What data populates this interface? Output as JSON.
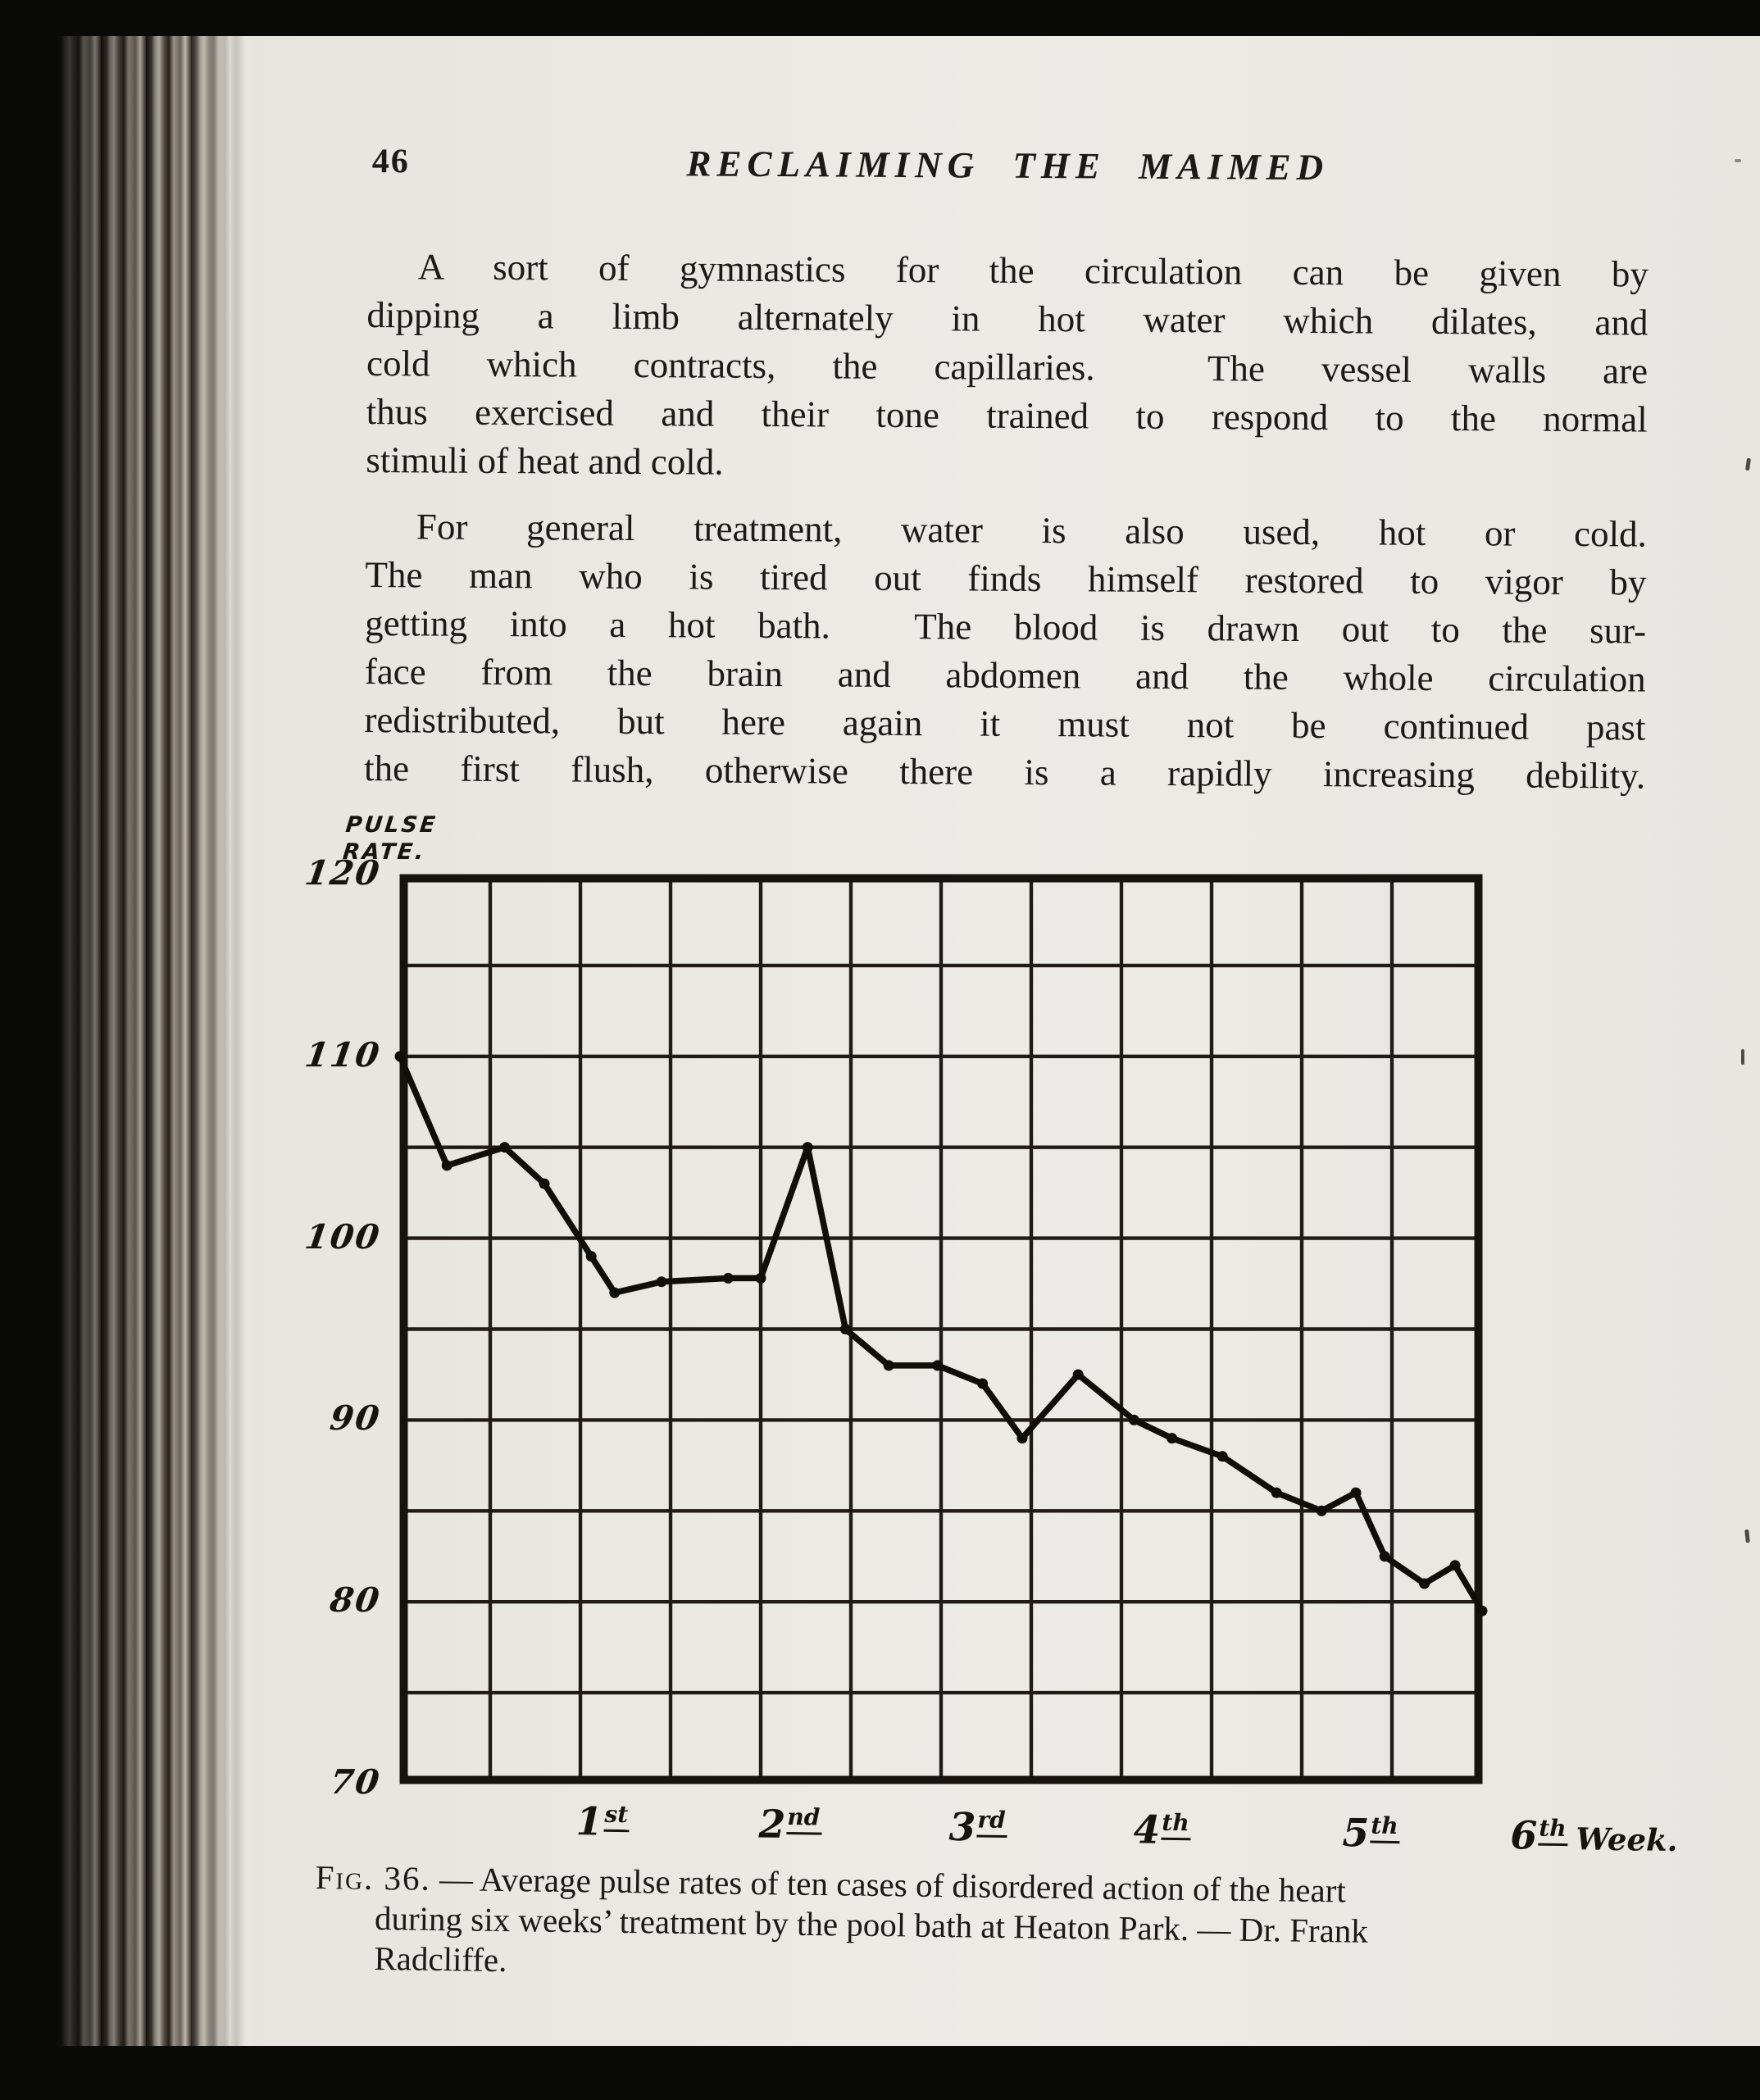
{
  "page": {
    "number": "46",
    "header_title": "RECLAIMING THE MAIMED",
    "paragraphs": [
      {
        "lines": [
          {
            "text": "A sort of gymnastics for the circulation can be given by",
            "justify": true,
            "indent": true
          },
          {
            "text": "dipping a limb alternately in hot water which dilates, and",
            "justify": true
          },
          {
            "text": "cold which contracts, the capillaries.  The vessel walls are",
            "justify": true
          },
          {
            "text": "thus exercised and their tone trained to respond to the normal",
            "justify": true
          },
          {
            "text": "stimuli of heat and cold.",
            "justify": false
          }
        ]
      },
      {
        "lines": [
          {
            "text": "For general treatment, water is also used, hot or cold.",
            "justify": true,
            "indent": true
          },
          {
            "text": "The man who is tired out finds himself restored to vigor by",
            "justify": true
          },
          {
            "text": "getting into a hot bath.  The blood is drawn out to the sur-",
            "justify": true
          },
          {
            "text": "face from the brain and abdomen and the whole circulation",
            "justify": true
          },
          {
            "text": "redistributed, but here again it must not be continued past",
            "justify": true
          },
          {
            "text": "the first flush, otherwise there is a rapidly increasing debility.",
            "justify": true
          }
        ]
      }
    ]
  },
  "figure": {
    "y_axis_title": [
      "PULSE",
      "RATE."
    ],
    "y_ticks": [
      120,
      110,
      100,
      90,
      80,
      70
    ],
    "x_ticks": [
      {
        "num": "1",
        "suffix": "st",
        "tail": ""
      },
      {
        "num": "2",
        "suffix": "nd",
        "tail": ""
      },
      {
        "num": "3",
        "suffix": "rd",
        "tail": ""
      },
      {
        "num": "4",
        "suffix": "th",
        "tail": ""
      },
      {
        "num": "5",
        "suffix": "th",
        "tail": ""
      },
      {
        "num": "6",
        "suffix": "th",
        "tail": "Week."
      }
    ],
    "caption": {
      "label": "Fig. 36.",
      "line1_rest": " — Average pulse rates of ten cases of disordered action of the heart",
      "line2": "during six weeks’ treatment by the pool bath at Heaton Park. — Dr. Frank",
      "line3": "Radcliffe."
    }
  },
  "chart_data": {
    "type": "line",
    "title": "Average pulse rates of ten cases of disordered action of the heart during six weeks' treatment by the pool bath at Heaton Park",
    "xlabel": "Week",
    "ylabel": "Pulse rate",
    "xlim": [
      0,
      6
    ],
    "ylim": [
      70,
      120
    ],
    "x_grid_step": 0.5,
    "y_grid_step": 5,
    "grid": true,
    "legend": "none",
    "series": [
      {
        "name": "Average pulse rate",
        "x": [
          0,
          0.26,
          0.58,
          0.8,
          1.06,
          1.19,
          1.45,
          1.82,
          2.0,
          2.26,
          2.47,
          2.71,
          2.98,
          3.23,
          3.45,
          3.76,
          4.07,
          4.28,
          4.56,
          4.86,
          5.11,
          5.3,
          5.46,
          5.68,
          5.85,
          6.0
        ],
        "y": [
          110,
          104,
          105,
          103,
          99,
          97,
          97.6,
          97.8,
          97.8,
          105,
          95,
          93,
          93,
          92,
          89,
          92.5,
          90,
          89,
          88,
          86,
          85,
          86,
          82.5,
          81,
          82,
          79.5
        ]
      }
    ]
  },
  "colors": {
    "paper": "#e9e6e0",
    "ink": "#1c1916",
    "chart_ink": "#17130f",
    "background": "#0a0a09"
  }
}
